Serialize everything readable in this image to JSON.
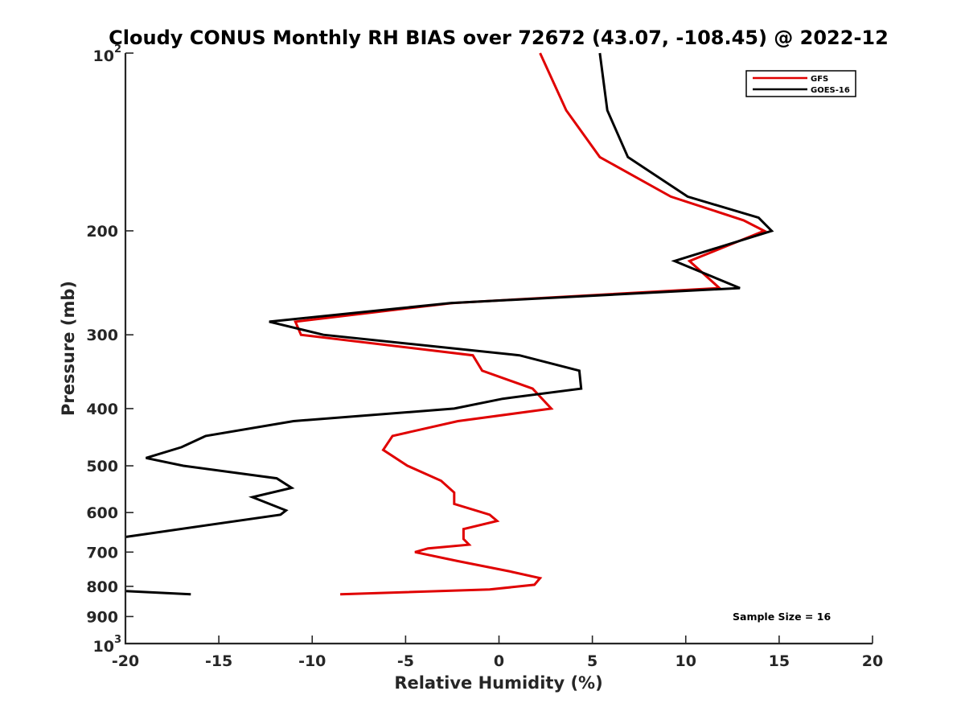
{
  "chart_data": {
    "type": "line",
    "title": "Cloudy CONUS Monthly RH BIAS over 72672 (43.07, -108.45) @ 2022-12",
    "xlabel": "Relative Humidity (%)",
    "ylabel": "Pressure (mb)",
    "xlim": [
      -20,
      20
    ],
    "ylim": [
      100,
      1000
    ],
    "yscale": "log",
    "y_inverted": true,
    "x_ticks": [
      -20,
      -15,
      -10,
      -5,
      0,
      5,
      10,
      15,
      20
    ],
    "x_tick_labels": [
      "-20",
      "-15",
      "-10",
      "-5",
      "0",
      "5",
      "10",
      "15",
      "20"
    ],
    "y_ticks": [
      {
        "value": 100,
        "base": "10",
        "exp": "2"
      },
      {
        "value": 200,
        "label": "200"
      },
      {
        "value": 300,
        "label": "300"
      },
      {
        "value": 400,
        "label": "400"
      },
      {
        "value": 500,
        "label": "500"
      },
      {
        "value": 600,
        "label": "600"
      },
      {
        "value": 700,
        "label": "700"
      },
      {
        "value": 800,
        "label": "800"
      },
      {
        "value": 900,
        "label": "900"
      },
      {
        "value": 1000,
        "base": "10",
        "exp": "3"
      }
    ],
    "legend_position": "top-right",
    "annotation": "Sample Size = 16",
    "series": [
      {
        "name": "GFS",
        "color": "#e00000",
        "points": [
          {
            "x": 2.2,
            "p": 100
          },
          {
            "x": 3.6,
            "p": 125
          },
          {
            "x": 5.4,
            "p": 150
          },
          {
            "x": 9.2,
            "p": 175
          },
          {
            "x": 13.1,
            "p": 192
          },
          {
            "x": 14.2,
            "p": 200
          },
          {
            "x": 10.2,
            "p": 225
          },
          {
            "x": 11.8,
            "p": 250
          },
          {
            "x": -2.5,
            "p": 265
          },
          {
            "x": -10.9,
            "p": 285
          },
          {
            "x": -10.6,
            "p": 300
          },
          {
            "x": -1.4,
            "p": 325
          },
          {
            "x": -0.9,
            "p": 345
          },
          {
            "x": 1.8,
            "p": 370
          },
          {
            "x": 2.8,
            "p": 400
          },
          {
            "x": -2.2,
            "p": 420
          },
          {
            "x": -5.7,
            "p": 445
          },
          {
            "x": -6.2,
            "p": 470
          },
          {
            "x": -4.9,
            "p": 500
          },
          {
            "x": -3.1,
            "p": 530
          },
          {
            "x": -2.4,
            "p": 555
          },
          {
            "x": -2.4,
            "p": 580
          },
          {
            "x": -0.5,
            "p": 605
          },
          {
            "x": -0.1,
            "p": 620
          },
          {
            "x": -1.9,
            "p": 640
          },
          {
            "x": -1.9,
            "p": 665
          },
          {
            "x": -1.6,
            "p": 680
          },
          {
            "x": -3.8,
            "p": 690
          },
          {
            "x": -4.5,
            "p": 700
          },
          {
            "x": -2.2,
            "p": 725
          },
          {
            "x": 0.6,
            "p": 755
          },
          {
            "x": 2.2,
            "p": 775
          },
          {
            "x": 1.9,
            "p": 795
          },
          {
            "x": -0.5,
            "p": 810
          },
          {
            "x": -8.5,
            "p": 825
          }
        ]
      },
      {
        "name": "GOES-16",
        "color": "#000000",
        "points": [
          {
            "x": 5.4,
            "p": 100
          },
          {
            "x": 5.8,
            "p": 125
          },
          {
            "x": 6.9,
            "p": 150
          },
          {
            "x": 10.1,
            "p": 175
          },
          {
            "x": 13.9,
            "p": 190
          },
          {
            "x": 14.6,
            "p": 200
          },
          {
            "x": 9.4,
            "p": 225
          },
          {
            "x": 12.9,
            "p": 250
          },
          {
            "x": -2.6,
            "p": 265
          },
          {
            "x": -12.3,
            "p": 285
          },
          {
            "x": -9.4,
            "p": 300
          },
          {
            "x": 1.1,
            "p": 325
          },
          {
            "x": 4.3,
            "p": 345
          },
          {
            "x": 4.4,
            "p": 370
          },
          {
            "x": 0.2,
            "p": 385
          },
          {
            "x": -2.4,
            "p": 400
          },
          {
            "x": -11.0,
            "p": 420
          },
          {
            "x": -15.7,
            "p": 445
          },
          {
            "x": -17.0,
            "p": 465
          },
          {
            "x": -18.9,
            "p": 485
          },
          {
            "x": -16.9,
            "p": 500
          },
          {
            "x": -11.9,
            "p": 525
          },
          {
            "x": -11.1,
            "p": 545
          },
          {
            "x": -13.2,
            "p": 565
          },
          {
            "x": -11.4,
            "p": 595
          },
          {
            "x": -11.7,
            "p": 605
          },
          {
            "x": -20.0,
            "p": 660
          }
        ],
        "segments": [
          [
            {
              "x": -20.0,
              "p": 815
            },
            {
              "x": -16.5,
              "p": 825
            }
          ]
        ]
      }
    ]
  }
}
